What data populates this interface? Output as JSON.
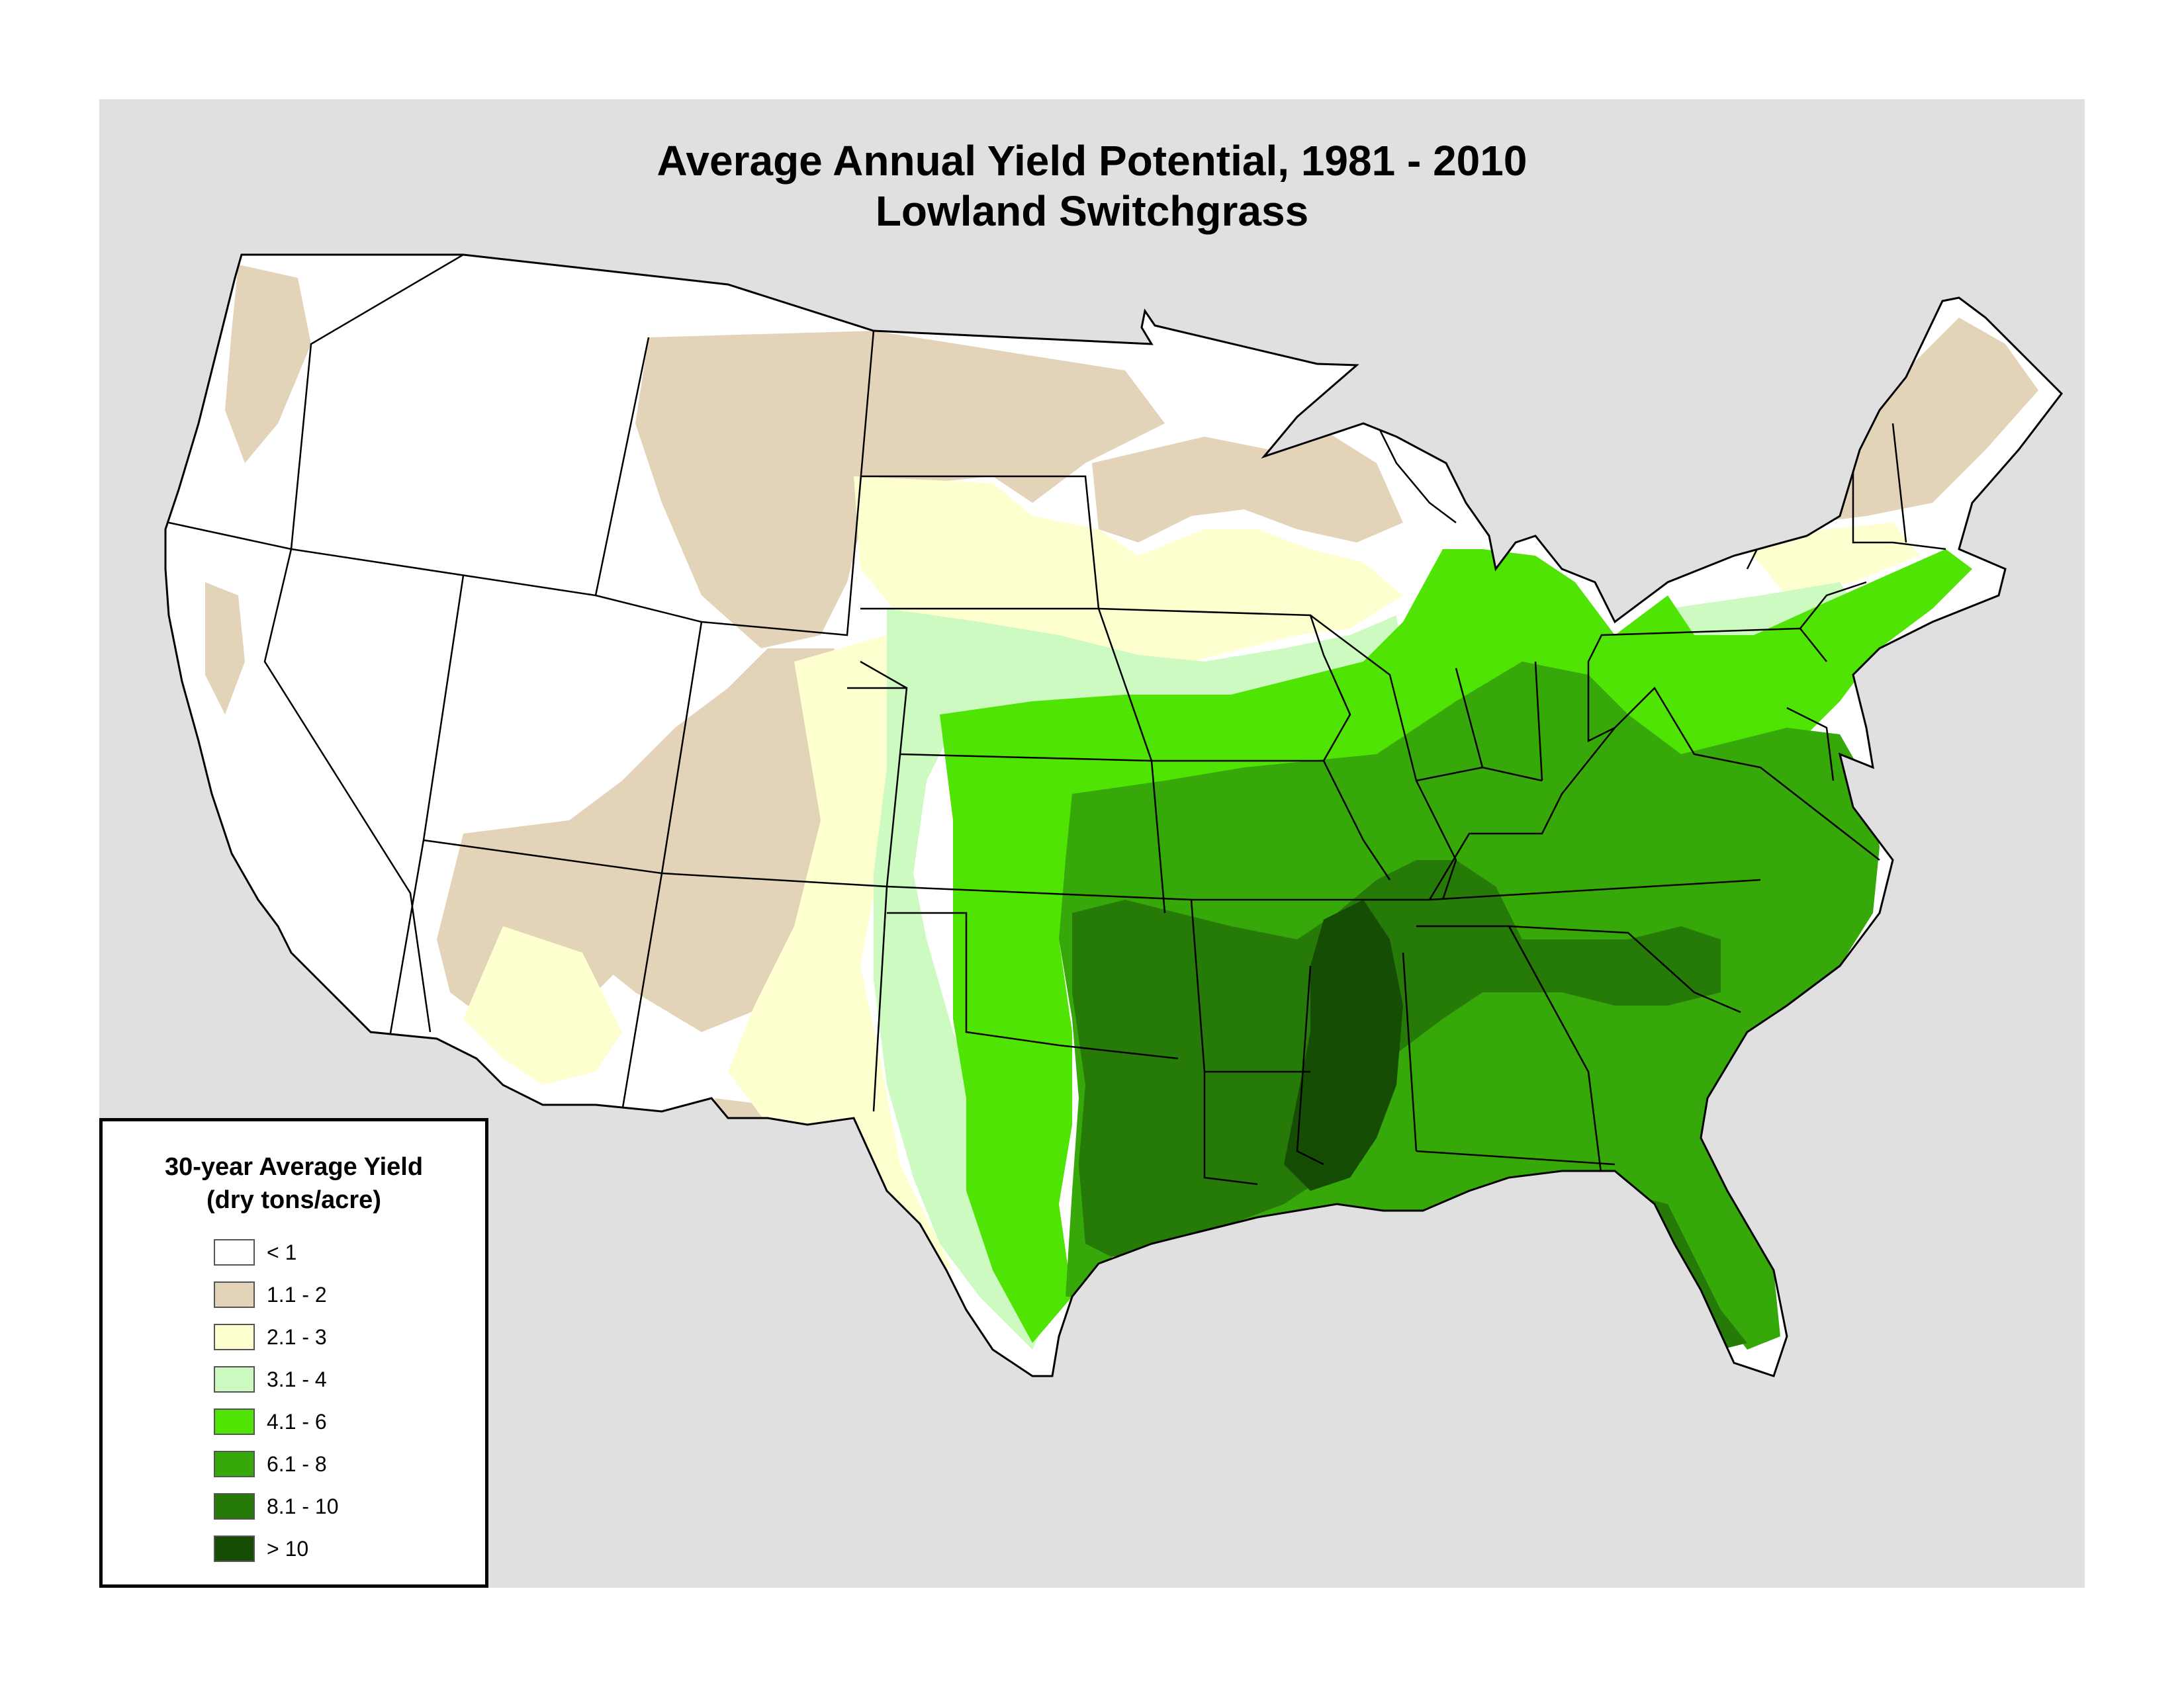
{
  "title": {
    "line1": "Average Annual Yield Potential, 1981 - 2010",
    "line2": "Lowland Switchgrass"
  },
  "legend": {
    "title_line1": "30-year Average Yield",
    "title_line2": "(dry tons/acre)",
    "items": [
      {
        "label": "< 1",
        "color": "#ffffff"
      },
      {
        "label": "1.1 - 2",
        "color": "#e3d3b8"
      },
      {
        "label": "2.1 - 3",
        "color": "#feffcf"
      },
      {
        "label": "3.1 - 4",
        "color": "#ccfac1"
      },
      {
        "label": "4.1 - 6",
        "color": "#4fe404"
      },
      {
        "label": "6.1 - 8",
        "color": "#36a80a"
      },
      {
        "label": "8.1 - 10",
        "color": "#267a07"
      },
      {
        "label": "> 10",
        "color": "#164d04"
      }
    ]
  },
  "colors": {
    "background": "#e0e0e0",
    "state_border": "#000000"
  }
}
